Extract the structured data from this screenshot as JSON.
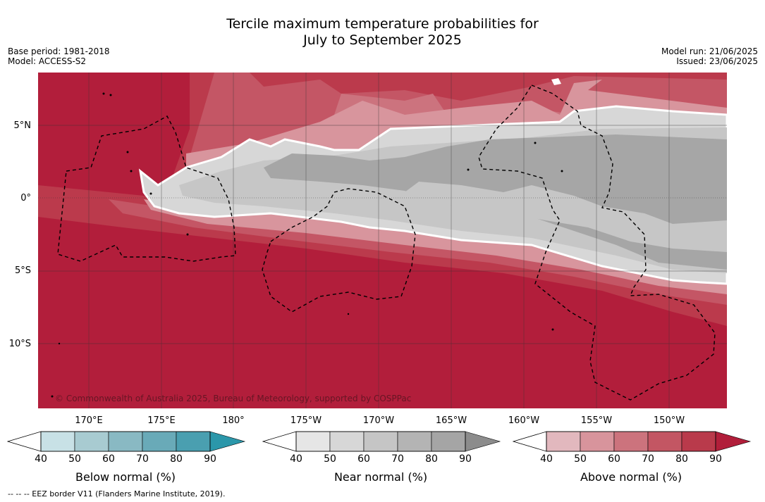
{
  "header": {
    "title_line1": "Tercile maximum temperature probabilities for",
    "title_line2": "July to September 2025",
    "base_period": "Base period: 1981-2018",
    "model": "Model: ACCESS-S2",
    "model_run": "Model run: 21/06/2025",
    "issued": "Issued: 23/06/2025"
  },
  "map": {
    "copyright": "© Commonwealth of Australia 2025, Bureau of Meteorology, supported by COSPPac",
    "lat_labels": [
      "5°N",
      "0°",
      "5°S",
      "10°S"
    ],
    "lon_labels": [
      "170°E",
      "175°E",
      "180°",
      "175°W",
      "170°W",
      "165°W",
      "160°W",
      "155°W",
      "150°W"
    ]
  },
  "colorbars": [
    {
      "title": "Below normal (%)",
      "ticks": [
        "40",
        "50",
        "60",
        "70",
        "80",
        "90"
      ],
      "colors": [
        "#c8e1e6",
        "#a8cbd1",
        "#89b9c3",
        "#69aab8",
        "#4a9fb0",
        "#2b97aa"
      ]
    },
    {
      "title": "Near normal (%)",
      "ticks": [
        "40",
        "50",
        "60",
        "70",
        "80",
        "90"
      ],
      "colors": [
        "#e6e6e6",
        "#d7d7d7",
        "#c5c5c5",
        "#b4b4b4",
        "#a5a5a5",
        "#8c8c8c"
      ]
    },
    {
      "title": "Above normal (%)",
      "ticks": [
        "40",
        "50",
        "60",
        "70",
        "80",
        "90"
      ],
      "colors": [
        "#e2b8be",
        "#d8949c",
        "#cc737d",
        "#c35663",
        "#b93a4b",
        "#b11e3a"
      ]
    }
  ],
  "footnote": "--  --  -- EEZ border V11 (Flanders Marine Institute, 2019).",
  "palette": {
    "above_90": "#b21e3b",
    "above_80": "#bb3a4c",
    "above_70": "#c45665",
    "above_60": "#cc737e",
    "above_50": "#d8959d",
    "near_40": "#d7d7d7",
    "near_50": "#c6c6c6",
    "near_60": "#a6a6a6"
  }
}
